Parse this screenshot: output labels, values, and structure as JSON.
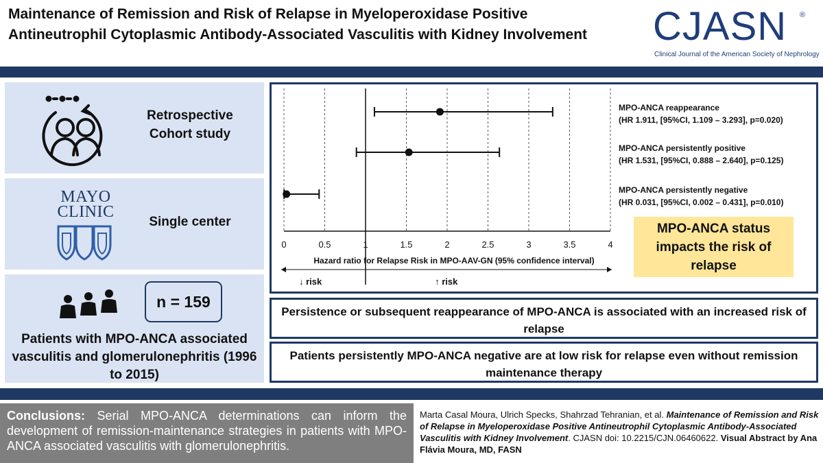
{
  "header": {
    "title": "Maintenance of Remission and Risk of Relapse in Myeloperoxidase Positive Antineutrophil Cytoplasmic Antibody-Associated Vasculitis with Kidney Involvement",
    "logo_text": "CJASN",
    "logo_registered": "®",
    "logo_subtitle": "Clinical Journal of the American Society of Nephrology"
  },
  "left_panels": {
    "study_type": "Retrospective Cohort study",
    "mayo_logo_line1": "MAYO",
    "mayo_logo_line2": "CLINIC",
    "center": "Single center",
    "n_label": "n = 159",
    "population": "Patients with MPO-ANCA associated vasculitis and glomerulonephritis (1996 to 2015)"
  },
  "chart_data": {
    "type": "scatter",
    "subtype": "forest-plot",
    "title": "",
    "xlabel": "Hazard ratio for Relapse Risk in MPO-AAV-GN (95% confidence interval)",
    "xlim": [
      0,
      4
    ],
    "x_ticks": [
      "0",
      "0.5",
      "1",
      "1.5",
      "2",
      "2.5",
      "3",
      "3.5",
      "4"
    ],
    "reference_line": 1,
    "grid": true,
    "direction_labels": {
      "lower": "↓ risk",
      "higher": "↑ risk"
    },
    "series": [
      {
        "name": "MPO-ANCA reappearance",
        "hr": 1.911,
        "ci_low": 1.109,
        "ci_high": 3.293,
        "detail": "(HR 1.911, [95%CI, 1.109 – 3.293], p=0.020)"
      },
      {
        "name": "MPO-ANCA persistently positive",
        "hr": 1.531,
        "ci_low": 0.888,
        "ci_high": 2.64,
        "detail": "(HR 1.531, [95%CI, 0.888 – 2.640], p=0.125)"
      },
      {
        "name": "MPO-ANCA persistently negative",
        "hr": 0.031,
        "ci_low": 0.002,
        "ci_high": 0.431,
        "detail": "(HR 0.031, [95%CI, 0.002 – 0.431], p=0.010)"
      }
    ]
  },
  "result_box": "MPO-ANCA status impacts the risk of relapse",
  "statements": {
    "first": "Persistence or subsequent reappearance of MPO-ANCA is associated with an increased risk of relapse",
    "second": "Patients persistently MPO-ANCA negative are at low risk for relapse even without remission maintenance therapy"
  },
  "conclusions": {
    "label": "Conclusions:",
    "text": " Serial MPO-ANCA determinations can inform the development of remission-maintenance strategies in patients with MPO-ANCA associated vasculitis with glomerulonephritis."
  },
  "citation": {
    "authors": "Marta Casal Moura, Ulrich Specks, Shahrzad Tehranian, et al. ",
    "article": "Maintenance of Remission and Risk of Relapse in Myeloperoxidase Positive Antineutrophil Cytoplasmic Antibody-Associated Vasculitis with Kidney Involvement",
    "doi": ". CJASN doi: 10.2215/CJN.06460622. ",
    "credit": "Visual Abstract by Ana Flávia Moura, MD, FASN"
  },
  "colors": {
    "navy": "#1f3864",
    "panel_blue": "#dae3f3",
    "highlight_yellow": "#ffe699",
    "conclusion_gray": "#7f7f7f"
  }
}
